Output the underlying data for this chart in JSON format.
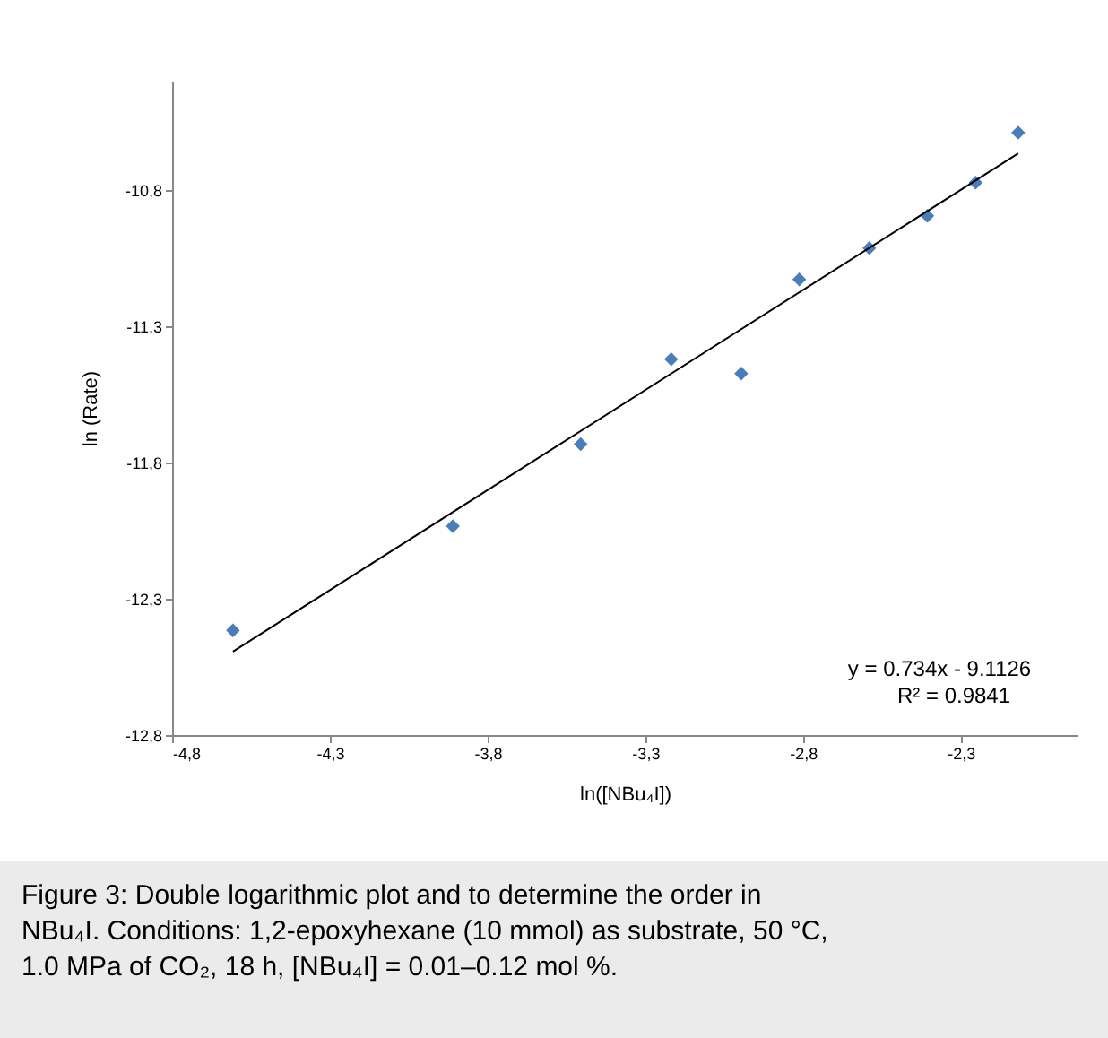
{
  "chart_data": {
    "type": "scatter",
    "xlabel": "ln([NBu₄I])",
    "ylabel": "ln (Rate)",
    "marker": "diamond",
    "xlim": [
      -4.8,
      -1.93
    ],
    "ylim": [
      -12.8,
      -10.4
    ],
    "xticks": [
      {
        "value": -4.8,
        "label": "-4,8"
      },
      {
        "value": -4.3,
        "label": "-4,3"
      },
      {
        "value": -3.8,
        "label": "-3,8"
      },
      {
        "value": -3.3,
        "label": "-3,3"
      },
      {
        "value": -2.8,
        "label": "-2,8"
      },
      {
        "value": -2.3,
        "label": "-2,3"
      }
    ],
    "yticks": [
      {
        "value": -12.8,
        "label": "-12,8"
      },
      {
        "value": -12.3,
        "label": "-12,3"
      },
      {
        "value": -11.8,
        "label": "-11,8"
      },
      {
        "value": -11.3,
        "label": "-11,3"
      },
      {
        "value": -10.8,
        "label": "-10,8"
      }
    ],
    "series": [
      {
        "color": "#4a7ebb",
        "x": [
          -4.607,
          -3.91,
          -3.505,
          -3.218,
          -2.996,
          -2.812,
          -2.59,
          -2.406,
          -2.253,
          -2.118
        ],
        "values": [
          -12.416,
          -12.034,
          -11.733,
          -11.422,
          -11.474,
          -11.129,
          -11.014,
          -10.896,
          -10.774,
          -10.591
        ]
      },
      {
        "type": "line",
        "color": "#000000",
        "marker": "none",
        "line_style": "solid",
        "x": [
          -4.607,
          -2.118
        ],
        "values": [
          -12.494,
          -10.667
        ]
      }
    ],
    "annotations": [
      "y = 0.734x - 9.1126",
      "R² = 0.9841",
      "Figure 3: Double logarithmic plot and to determine the order in NBu₄I. Conditions: 1,2-epoxyhexane (10 mmol) as substrate, 50 °C, 1.0 MPa of CO₂, 18 h, [NBu₄I] = 0.01–0.12 mol %."
    ]
  }
}
